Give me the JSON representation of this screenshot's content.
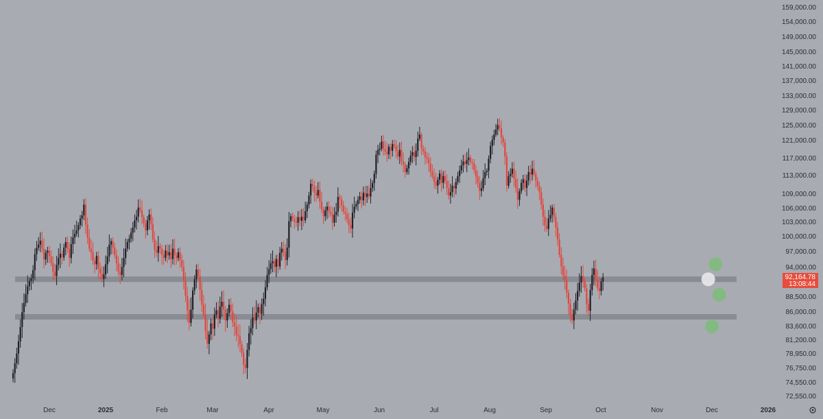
{
  "colors": {
    "background": "#a9abb2",
    "bullish": "#1f2026",
    "bearish": "#e0473e",
    "support_band": "#8a8c93",
    "price_tag": "#e74c3c",
    "marker_green": "#7dbb7b",
    "marker_white": "#e9e9ec",
    "axis_text": "#2a2d35"
  },
  "icons": {
    "settings": "gear-icon"
  },
  "price_tag": {
    "price": "92,164.78",
    "countdown": "13:08:44"
  },
  "chart_data": {
    "type": "candlestick",
    "y_ticks": [
      "159,000.00",
      "154,000.00",
      "149,000.00",
      "145,000.00",
      "141,000.00",
      "137,000.00",
      "133,000.00",
      "129,000.00",
      "125,000.00",
      "121,000.00",
      "117,000.00",
      "113,000.00",
      "109,000.00",
      "106,000.00",
      "103,000.00",
      "100,000.00",
      "97,000.00",
      "94,000.00",
      "88,500.00",
      "86,000.00",
      "83,600.00",
      "81,200.00",
      "78,950.00",
      "76,750.00",
      "74,550.00",
      "72,550.00"
    ],
    "x_ticks": [
      "Dec",
      "2025",
      "Feb",
      "Mar",
      "Apr",
      "May",
      "Jun",
      "Jul",
      "Aug",
      "Sep",
      "Oct",
      "Nov",
      "Dec",
      "2026"
    ],
    "support_zones": [
      91800,
      85200
    ],
    "markers": [
      {
        "type": "green",
        "date": "2025-12-03",
        "price": 94600
      },
      {
        "type": "white",
        "date": "2025-11-29",
        "price": 91800
      },
      {
        "type": "green",
        "date": "2025-12-05",
        "price": 88900
      },
      {
        "type": "green",
        "date": "2025-12-01",
        "price": 83600
      }
    ],
    "series": [
      {
        "date_start": "2024-11-11",
        "close_path": [
          76000,
          77500,
          79000,
          81000,
          83500,
          86000,
          87500,
          89000,
          90500,
          91500,
          92000,
          93500,
          96500,
          97800,
          98400,
          99200,
          97600,
          95500,
          96800,
          97200,
          96100,
          94800,
          93200,
          92400,
          94500,
          95800,
          96600,
          95900,
          97800,
          98900,
          97600,
          95800,
          98500,
          99800,
          100600,
          101300,
          102400,
          103800,
          104500,
          106800,
          102500,
          99800,
          97600,
          96900,
          95300,
          94600,
          96200,
          93800,
          92900,
          91800,
          92700,
          94600,
          96100,
          98400,
          99100,
          97800,
          96300,
          94800,
          93200,
          92600,
          94100,
          95800,
          97600,
          98900,
          99600,
          100800,
          101900,
          103400,
          104200,
          106200,
          105600,
          104100,
          102800,
          101300,
          103400,
          104700,
          102600,
          99400,
          97300,
          96800,
          98100,
          97600,
          96400,
          95800,
          97200,
          96300,
          96900,
          95600,
          97600,
          96300,
          95800,
          96900,
          95400,
          94100,
          91600,
          88700,
          86300,
          84200,
          86400,
          89700,
          91800,
          93600,
          92400,
          89800,
          87200,
          85600,
          82800,
          80600,
          82200,
          84100,
          83200,
          85600,
          86300,
          84900,
          86900,
          87700,
          86400,
          84600,
          85800,
          87200,
          86100,
          84300,
          83600,
          82100,
          81900,
          80500,
          79100,
          77300,
          76800,
          79600,
          82400,
          83300,
          85100,
          84600,
          85900,
          86800,
          85700,
          87300,
          88200,
          90300,
          92600,
          93700,
          94800,
          95200,
          94100,
          95600,
          94200,
          96800,
          97600,
          96900,
          95400,
          97800,
          103200,
          104300,
          103700,
          103100,
          102900,
          104100,
          103300,
          104200,
          103400,
          105400,
          106800,
          108700,
          111200,
          110600,
          109300,
          108700,
          109900,
          107400,
          105800,
          104300,
          105600,
          106400,
          105200,
          104800,
          102900,
          104600,
          105300,
          108400,
          107900,
          106600,
          105300,
          104800,
          103600,
          102400,
          101700,
          105100,
          106400,
          106900,
          107800,
          108500,
          107700,
          109300,
          108400,
          109100,
          108500,
          110300,
          111400,
          113400,
          117800,
          118900,
          119200,
          120800,
          119100,
          118500,
          117900,
          119600,
          118700,
          120200,
          119800,
          118600,
          117400,
          118900,
          116300,
          115600,
          113800,
          114700,
          116200,
          117600,
          118400,
          117300,
          118700,
          121500,
          122600,
          119200,
          118600,
          117300,
          116900,
          115800,
          113900,
          112800,
          111600,
          110800,
          112100,
          113500,
          111400,
          112900,
          111800,
          110300,
          108700,
          109400,
          110800,
          110200,
          111600,
          112900,
          114200,
          115400,
          116300,
          115700,
          116600,
          117200,
          116100,
          115900,
          114300,
          112800,
          111400,
          109700,
          110200,
          112400,
          113800,
          114100,
          116900,
          119800,
          121200,
          122600,
          123900,
          125100,
          124300,
          121800,
          120600,
          117400,
          110800,
          112900,
          113400,
          114600,
          112300,
          110300,
          107800,
          109600,
          111400,
          112200,
          110300,
          111900,
          113800,
          113200,
          114600,
          113400,
          111900,
          110700,
          109400,
          106800,
          104200,
          102300,
          101600,
          103800,
          104600,
          106200,
          104100,
          101900,
          99400,
          96400,
          94200,
          92500,
          91600,
          89300,
          87400,
          85600,
          84600,
          86400,
          87900,
          89600,
          91200,
          92400,
          91500,
          90100,
          87300,
          86200,
          89800,
          92600,
          93800,
          91700,
          90200,
          89600,
          91400,
          92164
        ]
      }
    ]
  }
}
